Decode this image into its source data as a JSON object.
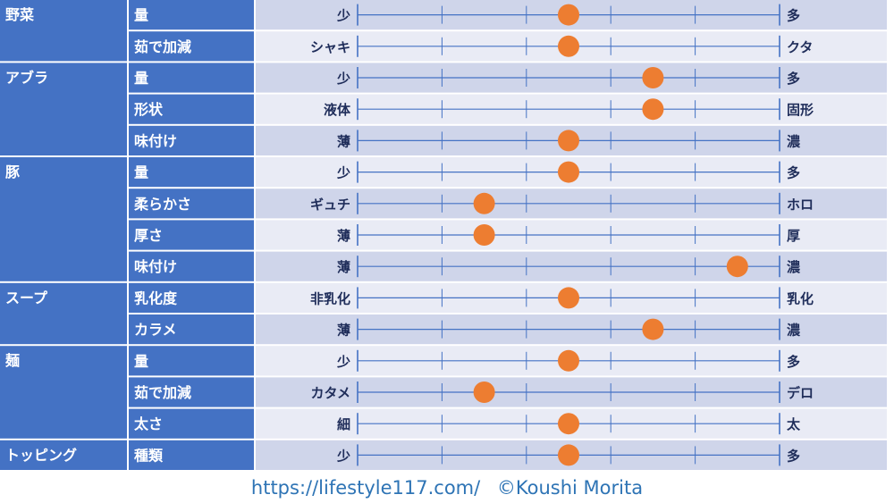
{
  "chart_data": {
    "type": "table",
    "scale": [
      0,
      5
    ],
    "groups": [
      {
        "name": "野菜",
        "rows": [
          {
            "item": "量",
            "left": "少",
            "right": "多",
            "value": 2.5
          },
          {
            "item": "茹で加減",
            "left": "シャキ",
            "right": "クタ",
            "value": 2.5
          }
        ]
      },
      {
        "name": "アブラ",
        "rows": [
          {
            "item": "量",
            "left": "少",
            "right": "多",
            "value": 3.5
          },
          {
            "item": "形状",
            "left": "液体",
            "right": "固形",
            "value": 3.5
          },
          {
            "item": "味付け",
            "left": "薄",
            "right": "濃",
            "value": 2.5
          }
        ]
      },
      {
        "name": "豚",
        "rows": [
          {
            "item": "量",
            "left": "少",
            "right": "多",
            "value": 2.5
          },
          {
            "item": "柔らかさ",
            "left": "ギュチ",
            "right": "ホロ",
            "value": 1.5
          },
          {
            "item": "厚さ",
            "left": "薄",
            "right": "厚",
            "value": 1.5
          },
          {
            "item": "味付け",
            "left": "薄",
            "right": "濃",
            "value": 4.5
          }
        ]
      },
      {
        "name": "スープ",
        "rows": [
          {
            "item": "乳化度",
            "left": "非乳化",
            "right": "乳化",
            "value": 2.5
          },
          {
            "item": "カラメ",
            "left": "薄",
            "right": "濃",
            "value": 3.5
          }
        ]
      },
      {
        "name": "麺",
        "rows": [
          {
            "item": "量",
            "left": "少",
            "right": "多",
            "value": 2.5
          },
          {
            "item": "茹で加減",
            "left": "カタメ",
            "right": "デロ",
            "value": 1.5
          },
          {
            "item": "太さ",
            "left": "細",
            "right": "太",
            "value": 2.5
          }
        ]
      },
      {
        "name": "トッピング",
        "rows": [
          {
            "item": "種類",
            "left": "少",
            "right": "多",
            "value": 2.5
          }
        ]
      }
    ]
  },
  "footer": {
    "url": "https://lifestyle117.com/",
    "credit": "©Koushi Morita"
  },
  "colors": {
    "group_bg": "#4472c4",
    "row_even": "#cfd5ea",
    "row_odd": "#e9ebf5",
    "text_dark": "#1f2d5a",
    "line": "#4472c4",
    "dot": "#ed7d31",
    "footer_text": "#2e74b5"
  }
}
